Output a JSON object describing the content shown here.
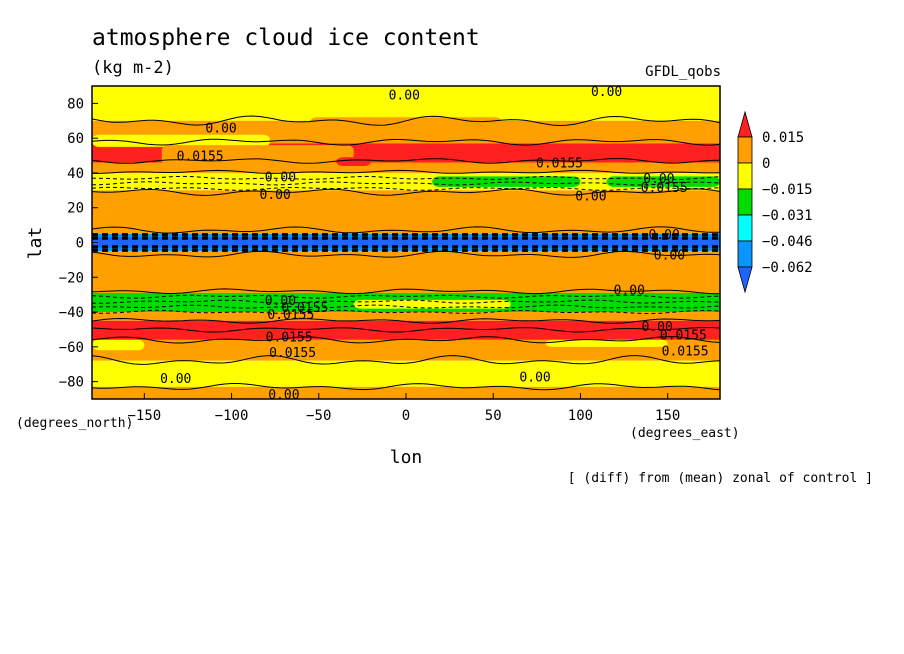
{
  "chart_data": {
    "type": "heatmap",
    "title": "atmosphere cloud ice content",
    "subtitle": "(kg m-2)",
    "model_label": "GFDL_qobs",
    "xlabel": "lon",
    "ylabel": "lat",
    "x_units": "(degrees_east)",
    "y_units": "(degrees_north)",
    "footnote": "[ (diff) from (mean) zonal of control ]",
    "xlim": [
      -180,
      180
    ],
    "ylim": [
      -90,
      90
    ],
    "x_ticks": [
      -150,
      -100,
      -50,
      0,
      50,
      100,
      150
    ],
    "y_ticks": [
      -80,
      -60,
      -40,
      -20,
      0,
      20,
      40,
      60,
      80
    ],
    "colorbar": {
      "labels": [
        "0.015",
        "0",
        "−0.015",
        "−0.031",
        "−0.046",
        "−0.062"
      ],
      "level_values": [
        0.015,
        0,
        -0.015,
        -0.031,
        -0.046,
        -0.062
      ],
      "colors": [
        "#ff2020",
        "#ffa000",
        "#ffff00",
        "#00dc00",
        "#00ffff",
        "#0a96ff",
        "#1e64ff"
      ],
      "extend": "both"
    },
    "zonal_bands": [
      {
        "lat": [
          70,
          90
        ],
        "class": 2
      },
      {
        "lat": [
          57,
          70
        ],
        "class": 1
      },
      {
        "lat": [
          46,
          57
        ],
        "class": 0
      },
      {
        "lat": [
          40,
          46
        ],
        "class": 1
      },
      {
        "lat": [
          30,
          40
        ],
        "class": 2
      },
      {
        "lat": [
          5,
          30
        ],
        "class": 1
      },
      {
        "lat": [
          -5,
          5
        ],
        "class": 5
      },
      {
        "lat": [
          -29,
          -5
        ],
        "class": 1
      },
      {
        "lat": [
          -40,
          -29
        ],
        "class": 3
      },
      {
        "lat": [
          -45,
          -40
        ],
        "class": 1
      },
      {
        "lat": [
          -56,
          -45
        ],
        "class": 0
      },
      {
        "lat": [
          -68,
          -56
        ],
        "class": 1
      },
      {
        "lat": [
          -83,
          -68
        ],
        "class": 2
      },
      {
        "lat": [
          -90,
          -83
        ],
        "class": 1
      }
    ],
    "patches": [
      {
        "lon": [
          -180,
          -78
        ],
        "lat": [
          55,
          62
        ],
        "class": 2
      },
      {
        "lon": [
          -55,
          55
        ],
        "lat": [
          62,
          72
        ],
        "class": 1
      },
      {
        "lon": [
          -165,
          -140
        ],
        "lat": [
          47,
          53
        ],
        "class": 0
      },
      {
        "lon": [
          -140,
          -30
        ],
        "lat": [
          44,
          56
        ],
        "class": 1
      },
      {
        "lon": [
          -40,
          -20
        ],
        "lat": [
          44,
          49
        ],
        "class": 0
      },
      {
        "lon": [
          15,
          100
        ],
        "lat": [
          32,
          38
        ],
        "class": 3
      },
      {
        "lon": [
          115,
          180
        ],
        "lat": [
          32,
          38
        ],
        "class": 3
      },
      {
        "lon": [
          -30,
          60
        ],
        "lat": [
          -33,
          -38
        ],
        "class": 2
      },
      {
        "lon": [
          80,
          150
        ],
        "lat": [
          -56,
          -60
        ],
        "class": 2
      },
      {
        "lon": [
          -180,
          -150
        ],
        "lat": [
          -56,
          -62
        ],
        "class": 2
      },
      {
        "lon": [
          -100,
          -40
        ],
        "lat": [
          -84,
          -89
        ],
        "class": 1
      }
    ],
    "contour_labels": [
      {
        "text": "0.00",
        "lon": -1,
        "lat": 85
      },
      {
        "text": "0.00",
        "lon": 115,
        "lat": 87
      },
      {
        "text": "0.00",
        "lon": -106,
        "lat": 66
      },
      {
        "text": "0.0155",
        "lon": -118,
        "lat": 50
      },
      {
        "text": "0.0155",
        "lon": 88,
        "lat": 46
      },
      {
        "text": "0.00",
        "lon": -72,
        "lat": 38
      },
      {
        "text": "0.00",
        "lon": -75,
        "lat": 28
      },
      {
        "text": "0.00",
        "lon": 106,
        "lat": 27
      },
      {
        "text": "0.00",
        "lon": 145,
        "lat": 37
      },
      {
        "text": "0.0155",
        "lon": 148,
        "lat": 32
      },
      {
        "text": "0.00",
        "lon": 148,
        "lat": 5
      },
      {
        "text": "0.00",
        "lon": 151,
        "lat": -7
      },
      {
        "text": "0.00",
        "lon": -72,
        "lat": -33
      },
      {
        "text": "0.0155",
        "lon": -58,
        "lat": -37
      },
      {
        "text": "0.0155",
        "lon": -66,
        "lat": -41
      },
      {
        "text": "0.0155",
        "lon": -67,
        "lat": -54
      },
      {
        "text": "0.0155",
        "lon": -65,
        "lat": -63
      },
      {
        "text": "0.00",
        "lon": 128,
        "lat": -27
      },
      {
        "text": "0.00",
        "lon": 144,
        "lat": -48
      },
      {
        "text": "0.0155",
        "lon": 159,
        "lat": -53
      },
      {
        "text": "0.0155",
        "lon": 160,
        "lat": -62
      },
      {
        "text": "0.00",
        "lon": -132,
        "lat": -78
      },
      {
        "text": "0.00",
        "lon": 74,
        "lat": -77
      },
      {
        "text": "0.00",
        "lon": -70,
        "lat": -87
      }
    ]
  }
}
